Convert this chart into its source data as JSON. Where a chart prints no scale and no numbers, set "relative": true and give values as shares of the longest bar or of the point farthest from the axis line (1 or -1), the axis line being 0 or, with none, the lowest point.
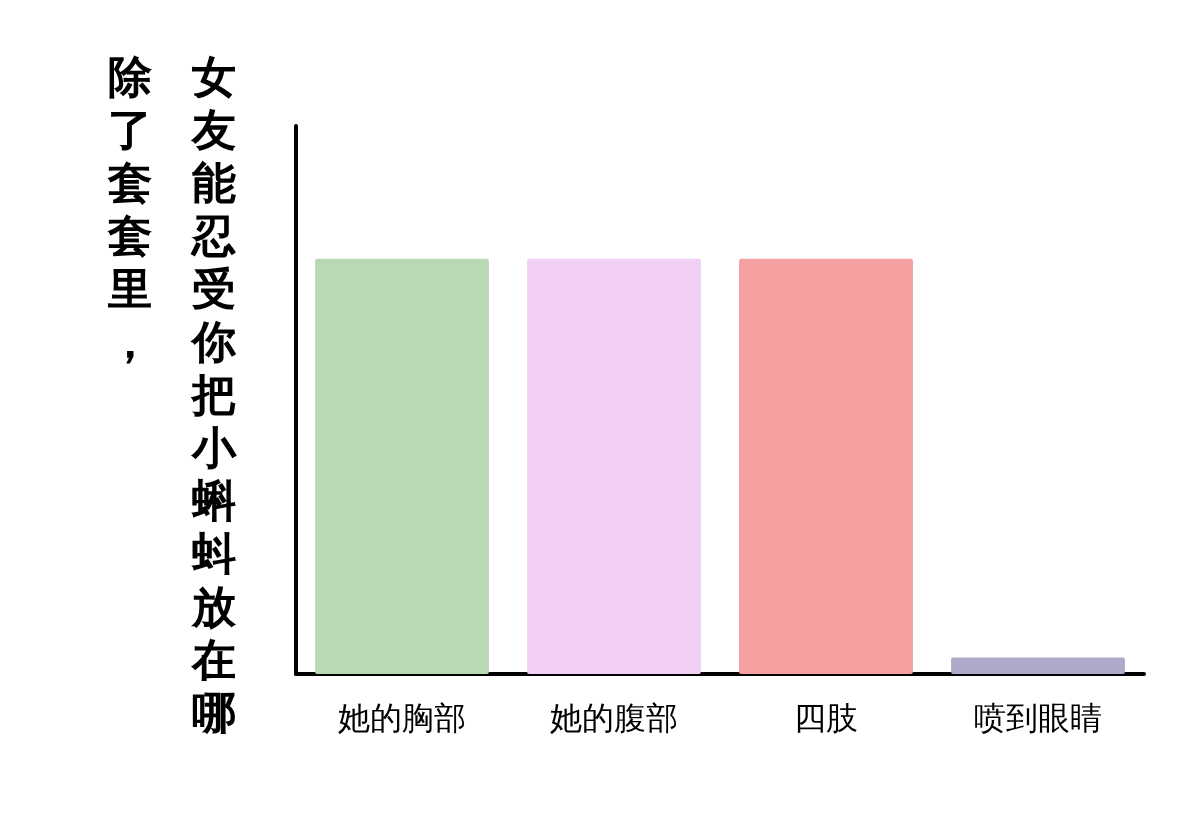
{
  "chart_data": {
    "type": "bar",
    "title": "除了套套里，",
    "ylabel": "女友能忍受你把小蝌蚪放在哪",
    "categories": [
      "她的胸部",
      "她的腹部",
      "四肢",
      "喷到眼睛"
    ],
    "values": [
      1,
      1,
      1,
      0.04
    ],
    "colors": [
      "#b9d9b4",
      "#f2d0f5",
      "#f4a0a0",
      "#b0a8c8"
    ],
    "relative": true,
    "grid": false
  }
}
